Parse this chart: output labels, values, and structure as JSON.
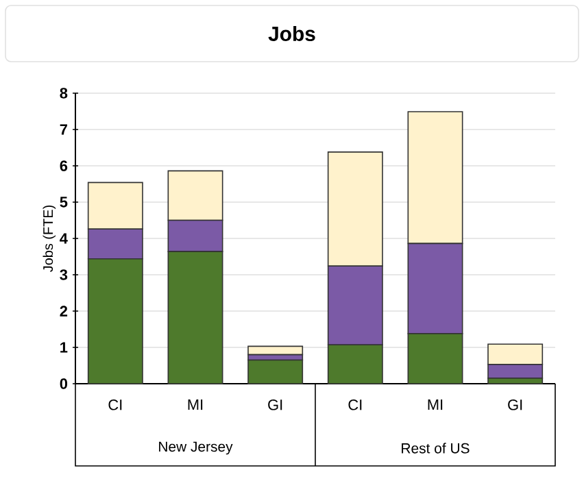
{
  "chart_data": {
    "type": "bar",
    "title": "Jobs",
    "ylabel": "Jobs (FTE)",
    "stacked": true,
    "categories": [
      "CI",
      "MI",
      "GI",
      "CI",
      "MI",
      "GI"
    ],
    "series": [
      {
        "color": "#4e7a2c",
        "values": [
          3.44,
          3.64,
          0.65,
          1.07,
          1.38,
          0.15
        ]
      },
      {
        "color": "#7b5aa6",
        "values": [
          0.82,
          0.86,
          0.15,
          2.17,
          2.48,
          0.38
        ]
      },
      {
        "color": "#fff2cc",
        "values": [
          1.28,
          1.36,
          0.23,
          3.14,
          3.63,
          0.56
        ]
      }
    ],
    "annotations": [
      "New Jersey",
      "Rest of US"
    ],
    "ylim": [
      0,
      8
    ],
    "yticks": [
      0,
      1,
      2,
      3,
      4,
      5,
      6,
      7,
      8
    ],
    "grid": "y"
  }
}
